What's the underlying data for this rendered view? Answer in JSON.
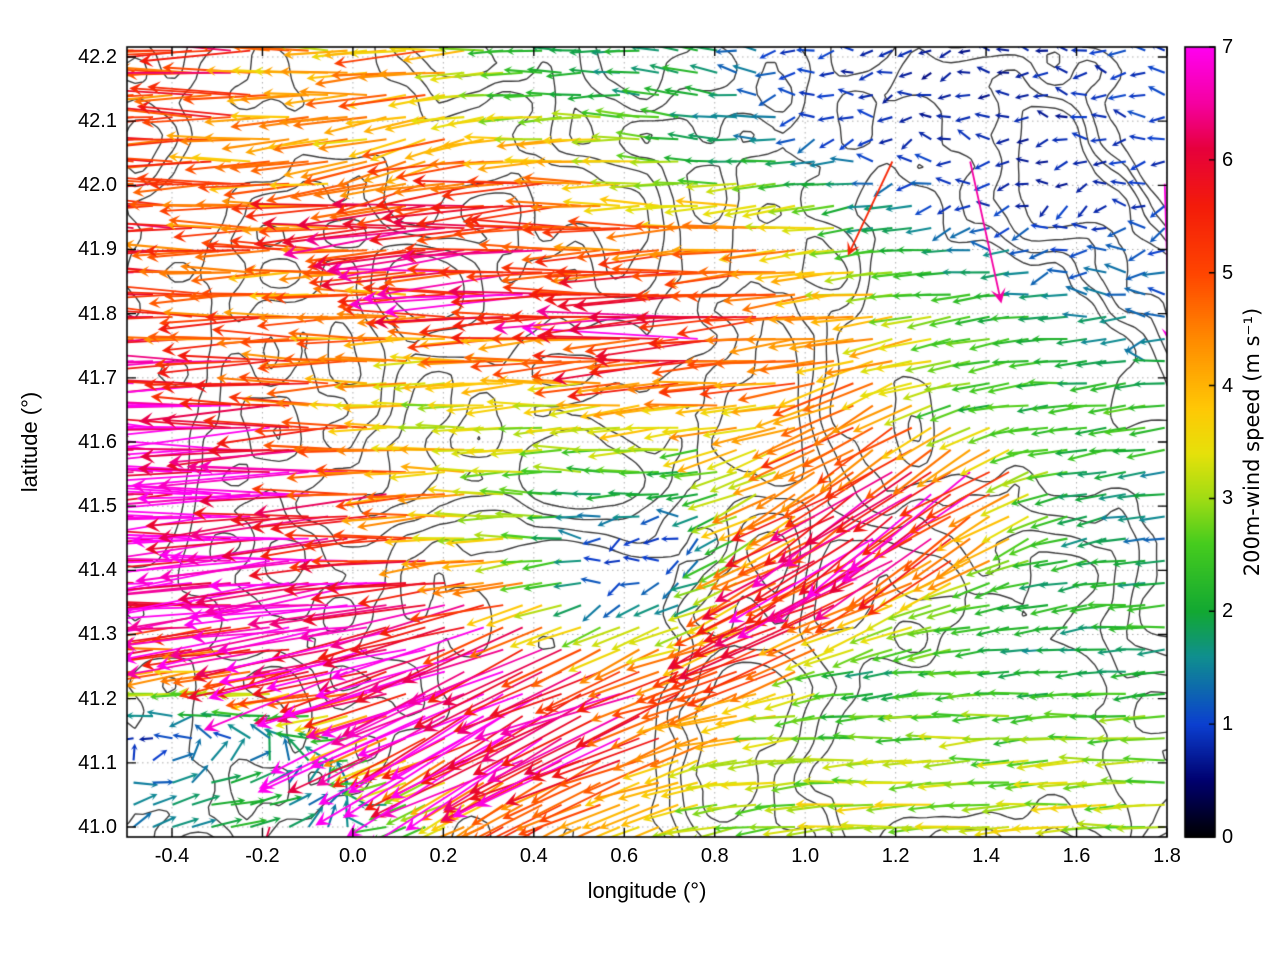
{
  "chart_data": {
    "type": "quiver",
    "title": "",
    "xlabel": "longitude (°)",
    "ylabel": "latitude (°)",
    "xlim": [
      -0.5,
      1.8
    ],
    "ylim": [
      40.98,
      42.22
    ],
    "grid": "dotted",
    "x_ticks": {
      "values": [
        -0.4,
        -0.2,
        0.0,
        0.2,
        0.4,
        0.6,
        0.8,
        1.0,
        1.2,
        1.4,
        1.6,
        1.8
      ],
      "labels": [
        "-0.4",
        "-0.2",
        "0.0",
        "0.2",
        "0.4",
        "0.6",
        "0.8",
        "1.0",
        "1.2",
        "1.4",
        "1.6",
        "1.8"
      ]
    },
    "y_ticks": {
      "values": [
        41.0,
        41.1,
        41.2,
        41.3,
        41.4,
        41.5,
        41.6,
        41.7,
        41.8,
        41.9,
        42.0,
        42.1,
        42.2
      ],
      "labels": [
        "41.0",
        "41.1",
        "41.2",
        "41.3",
        "41.4",
        "41.5",
        "41.6",
        "41.7",
        "41.8",
        "41.9",
        "42.0",
        "42.1",
        "42.2"
      ]
    },
    "colorbar": {
      "label": "200m-wind speed (m s⁻¹)",
      "min": 0,
      "max": 7,
      "ticks": {
        "values": [
          0,
          1,
          2,
          3,
          4,
          5,
          6,
          7
        ],
        "labels": [
          "0",
          "1",
          "2",
          "3",
          "4",
          "5",
          "6",
          "7"
        ]
      },
      "palette": [
        [
          0.0,
          "#000000"
        ],
        [
          0.5,
          "#00006e"
        ],
        [
          1.0,
          "#0b3fd0"
        ],
        [
          1.6,
          "#0f8f8f"
        ],
        [
          2.0,
          "#12a832"
        ],
        [
          2.6,
          "#46cc1e"
        ],
        [
          3.0,
          "#a0dc14"
        ],
        [
          3.4,
          "#e6e10a"
        ],
        [
          3.8,
          "#ffc805"
        ],
        [
          4.4,
          "#ff8c00"
        ],
        [
          5.0,
          "#ff4500"
        ],
        [
          5.6,
          "#f31b0a"
        ],
        [
          6.1,
          "#e6003c"
        ],
        [
          6.5,
          "#f500a0"
        ],
        [
          7.0,
          "#ff00f0"
        ]
      ]
    },
    "wind_field": {
      "units": "m s⁻¹",
      "dir_convention": "math degrees, 180 = arrow points west (left), 90 = north (up)",
      "lon": [
        -0.45,
        -0.25,
        -0.05,
        0.15,
        0.35,
        0.55,
        0.75,
        0.95,
        1.15,
        1.35,
        1.55,
        1.75
      ],
      "lat": [
        41.05,
        41.15,
        41.25,
        41.35,
        41.45,
        41.55,
        41.65,
        41.75,
        41.85,
        41.95,
        42.05,
        42.15
      ],
      "speed_dir": [
        [
          [
            1.5,
            20
          ],
          [
            2,
            10
          ],
          [
            1.2,
            60
          ],
          [
            2.5,
            200
          ],
          [
            5,
            210
          ],
          [
            4.5,
            205
          ],
          [
            3.2,
            195
          ],
          [
            3,
            185
          ],
          [
            3.2,
            183
          ],
          [
            3,
            184
          ],
          [
            3.2,
            183
          ],
          [
            3,
            182
          ]
        ],
        [
          [
            0.8,
            170
          ],
          [
            1.2,
            150
          ],
          [
            2,
            180
          ],
          [
            6.5,
            205
          ],
          [
            7,
            208
          ],
          [
            6.5,
            205
          ],
          [
            5,
            200
          ],
          [
            3,
            185
          ],
          [
            2.5,
            182
          ],
          [
            3,
            183
          ],
          [
            2.5,
            184
          ],
          [
            2.8,
            182
          ]
        ],
        [
          [
            4.5,
            185
          ],
          [
            4.5,
            188
          ],
          [
            6.5,
            195
          ],
          [
            7,
            200
          ],
          [
            7,
            205
          ],
          [
            5.5,
            205
          ],
          [
            5,
            200
          ],
          [
            4.5,
            200
          ],
          [
            1.5,
            190
          ],
          [
            2.5,
            185
          ],
          [
            1.8,
            185
          ],
          [
            2,
            185
          ]
        ],
        [
          [
            7,
            184
          ],
          [
            7,
            185
          ],
          [
            7,
            186
          ],
          [
            6.8,
            190
          ],
          [
            5,
            195
          ],
          [
            1,
            200
          ],
          [
            1.5,
            200
          ],
          [
            6,
            205
          ],
          [
            5,
            205
          ],
          [
            2.5,
            195
          ],
          [
            2,
            190
          ],
          [
            2.2,
            185
          ]
        ],
        [
          [
            7,
            182
          ],
          [
            7,
            183
          ],
          [
            6.8,
            184
          ],
          [
            4.5,
            183
          ],
          [
            3,
            180
          ],
          [
            1,
            190
          ],
          [
            0.8,
            200
          ],
          [
            4.2,
            210
          ],
          [
            6.5,
            212
          ],
          [
            5.5,
            215
          ],
          [
            2.2,
            195
          ],
          [
            1.5,
            190
          ]
        ],
        [
          [
            7,
            180
          ],
          [
            7,
            182
          ],
          [
            6.5,
            183
          ],
          [
            4.5,
            182
          ],
          [
            3.2,
            180
          ],
          [
            2.5,
            178
          ],
          [
            2.2,
            185
          ],
          [
            4,
            205
          ],
          [
            5.5,
            215
          ],
          [
            6.5,
            215
          ],
          [
            2.5,
            190
          ],
          [
            1.8,
            190
          ]
        ],
        [
          [
            7,
            178
          ],
          [
            6.8,
            180
          ],
          [
            4.5,
            182
          ],
          [
            3.2,
            180
          ],
          [
            3,
            182
          ],
          [
            3.3,
            184
          ],
          [
            4,
            185
          ],
          [
            4,
            190
          ],
          [
            4.5,
            210
          ],
          [
            2.5,
            195
          ],
          [
            2.2,
            185
          ],
          [
            2.5,
            185
          ]
        ],
        [
          [
            5.5,
            180
          ],
          [
            5.2,
            180
          ],
          [
            4.5,
            180
          ],
          [
            4.3,
            180
          ],
          [
            4.5,
            182
          ],
          [
            5,
            183
          ],
          [
            6.5,
            183
          ],
          [
            5,
            185
          ],
          [
            4.2,
            190
          ],
          [
            3,
            190
          ],
          [
            2,
            185
          ],
          [
            1.5,
            185
          ]
        ],
        [
          [
            5.5,
            178
          ],
          [
            4.8,
            180
          ],
          [
            4.5,
            180
          ],
          [
            4.5,
            182
          ],
          [
            6.5,
            183
          ],
          [
            5.5,
            182
          ],
          [
            5.5,
            185
          ],
          [
            4.5,
            185
          ],
          [
            3.2,
            185
          ],
          [
            2.2,
            185
          ],
          [
            1.5,
            190
          ],
          [
            1.2,
            185
          ]
        ],
        [
          [
            5.5,
            180
          ],
          [
            5,
            180
          ],
          [
            4.5,
            182
          ],
          [
            6,
            185
          ],
          [
            6,
            185
          ],
          [
            4.5,
            180
          ],
          [
            4,
            180
          ],
          [
            4,
            185
          ],
          [
            1.8,
            190
          ],
          [
            1,
            190
          ],
          [
            0.9,
            200
          ],
          [
            1,
            185
          ]
        ],
        [
          [
            5.5,
            180
          ],
          [
            4.5,
            180
          ],
          [
            4.2,
            190
          ],
          [
            4.5,
            200
          ],
          [
            4,
            185
          ],
          [
            4,
            180
          ],
          [
            2.2,
            175
          ],
          [
            1.5,
            185
          ],
          [
            1,
            190
          ],
          [
            0.8,
            170
          ],
          [
            0.7,
            200
          ],
          [
            0.9,
            180
          ]
        ],
        [
          [
            5,
            180
          ],
          [
            5.5,
            180
          ],
          [
            3.5,
            180
          ],
          [
            4.5,
            185
          ],
          [
            2.5,
            180
          ],
          [
            1.8,
            180
          ],
          [
            2,
            170
          ],
          [
            1,
            180
          ],
          [
            0.8,
            190
          ],
          [
            0.7,
            200
          ],
          [
            0.8,
            160
          ],
          [
            1,
            180
          ]
        ]
      ]
    },
    "contours": {
      "description": "terrain contour lines overlaid on map",
      "color": "#3f3f3f"
    }
  }
}
